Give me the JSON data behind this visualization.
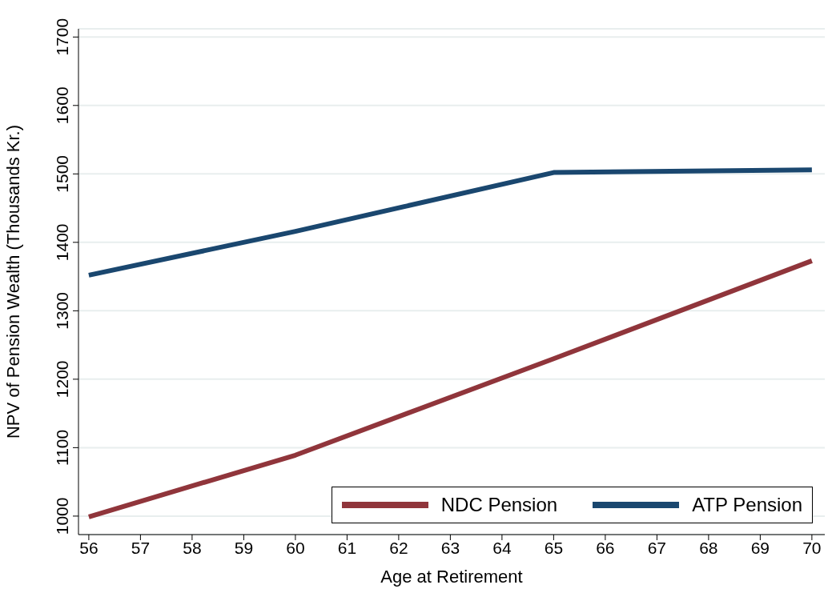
{
  "chart_data": {
    "type": "line",
    "xlabel": "Age at Retirement",
    "ylabel": "NPV of Pension Wealth (Thousands Kr.)",
    "x": [
      56,
      60,
      65,
      70
    ],
    "series": [
      {
        "name": "NDC Pension",
        "color": "#90353b",
        "values": [
          999,
          1089,
          1230,
          1373
        ]
      },
      {
        "name": "ATP Pension",
        "color": "#1a476f",
        "values": [
          1352,
          1416,
          1502,
          1506
        ]
      }
    ],
    "xlim": [
      55.8,
      70.25
    ],
    "xticks": [
      56,
      57,
      58,
      59,
      60,
      61,
      62,
      63,
      64,
      65,
      66,
      67,
      68,
      69,
      70
    ],
    "ylim": [
      973,
      1712
    ],
    "yticks": [
      1000,
      1100,
      1200,
      1300,
      1400,
      1500,
      1600,
      1700
    ],
    "grid": "y",
    "legend": "bottom right",
    "marker": "none",
    "line_style": "solid"
  }
}
